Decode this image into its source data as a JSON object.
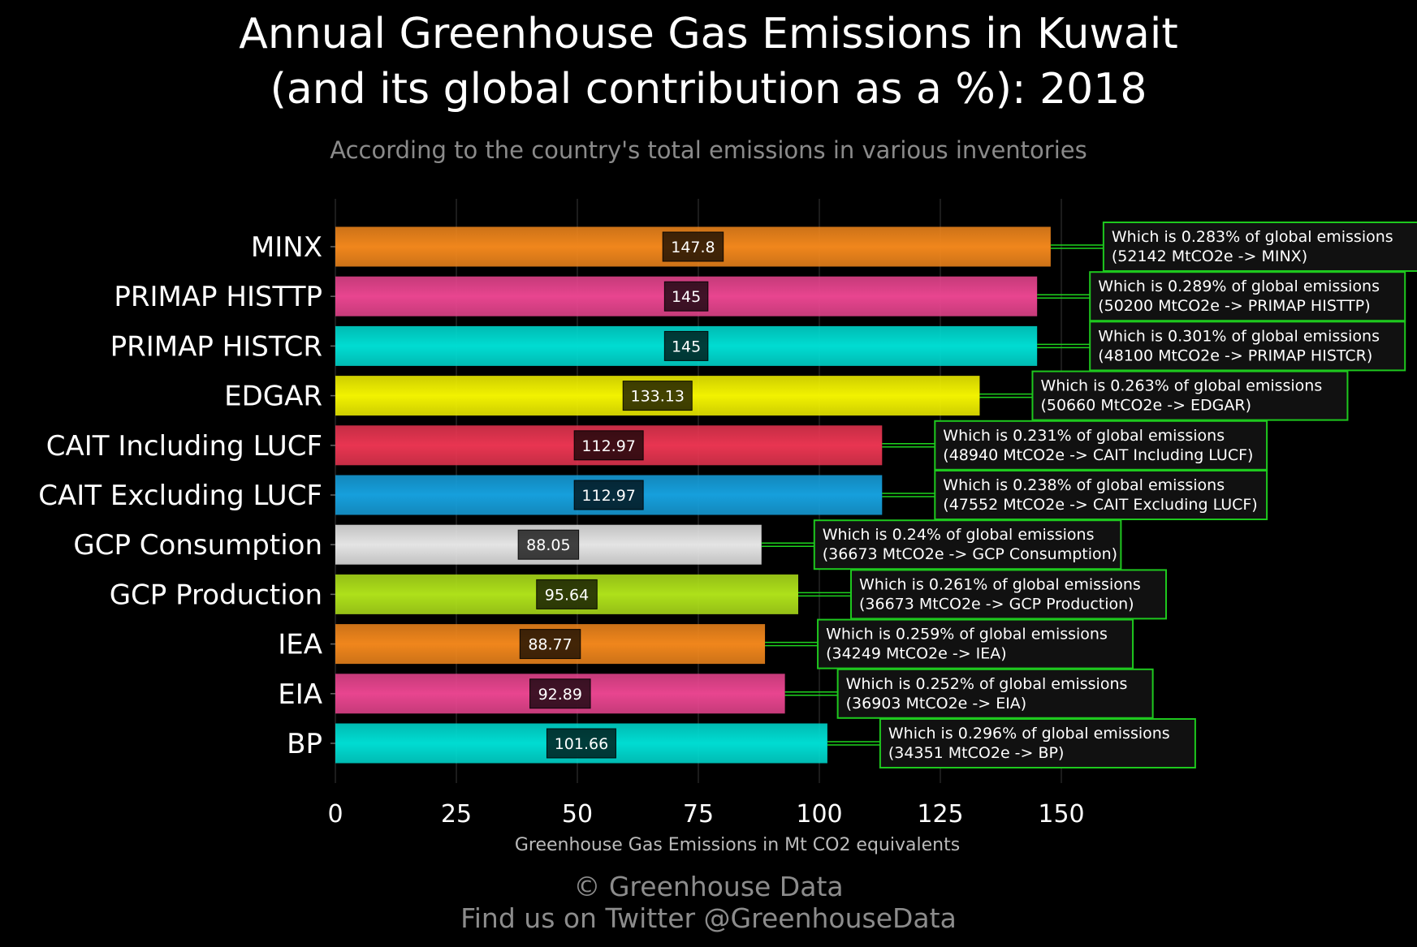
{
  "chart_data": {
    "type": "bar",
    "orientation": "horizontal",
    "title_line1": "Annual Greenhouse Gas Emissions in Kuwait",
    "title_line2": "(and its global contribution as a %): 2018",
    "subtitle": "According to the country's total emissions in various inventories",
    "xlabel": "Greenhouse Gas Emissions in Mt CO2 equivalents",
    "xlim": [
      0,
      170
    ],
    "xticks": [
      0,
      25,
      50,
      75,
      100,
      125,
      150
    ],
    "grid": true,
    "categories": [
      "MINX",
      "PRIMAP HISTTP",
      "PRIMAP HISTCR",
      "EDGAR",
      "CAIT Including LUCF",
      "CAIT Excluding LUCF",
      "GCP Consumption",
      "GCP Production",
      "IEA",
      "EIA",
      "BP"
    ],
    "values": [
      147.8,
      145,
      145,
      133.13,
      112.97,
      112.97,
      88.05,
      95.64,
      88.77,
      92.89,
      101.66
    ],
    "value_labels": [
      "147.8",
      "145",
      "145",
      "133.13",
      "112.97",
      "112.97",
      "88.05",
      "95.64",
      "88.77",
      "92.89",
      "101.66"
    ],
    "annotations": [
      {
        "line1": "Which is 0.283% of global emissions",
        "line2": "(52142 MtCO2e -> MINX)"
      },
      {
        "line1": "Which is 0.289% of global emissions",
        "line2": "(50200 MtCO2e -> PRIMAP HISTTP)"
      },
      {
        "line1": "Which is 0.301% of global emissions",
        "line2": "(48100 MtCO2e -> PRIMAP HISTCR)"
      },
      {
        "line1": "Which is 0.263% of global emissions",
        "line2": "(50660 MtCO2e -> EDGAR)"
      },
      {
        "line1": "Which is 0.231% of global emissions",
        "line2": "(48940 MtCO2e -> CAIT Including LUCF)"
      },
      {
        "line1": "Which is 0.238% of global emissions",
        "line2": "(47552 MtCO2e -> CAIT Excluding LUCF)"
      },
      {
        "line1": "Which is 0.24% of global emissions",
        "line2": "(36673 MtCO2e -> GCP Consumption)"
      },
      {
        "line1": "Which is 0.261% of global emissions",
        "line2": "(36673 MtCO2e -> GCP Production)"
      },
      {
        "line1": "Which is 0.259% of global emissions",
        "line2": "(34249 MtCO2e -> IEA)"
      },
      {
        "line1": "Which is 0.252% of global emissions",
        "line2": "(36903 MtCO2e -> EIA)"
      },
      {
        "line1": "Which is 0.296% of global emissions",
        "line2": "(34351 MtCO2e -> BP)"
      }
    ],
    "colors": [
      "#f0861c",
      "#e8458f",
      "#00dcd2",
      "#f2f200",
      "#e83551",
      "#169fdc",
      "#e4e4e4",
      "#aee01a",
      "#f0861c",
      "#e8458f",
      "#00dcd2"
    ],
    "footer_line1": "© Greenhouse Data",
    "footer_line2": "Find us on Twitter @GreenhouseData"
  }
}
